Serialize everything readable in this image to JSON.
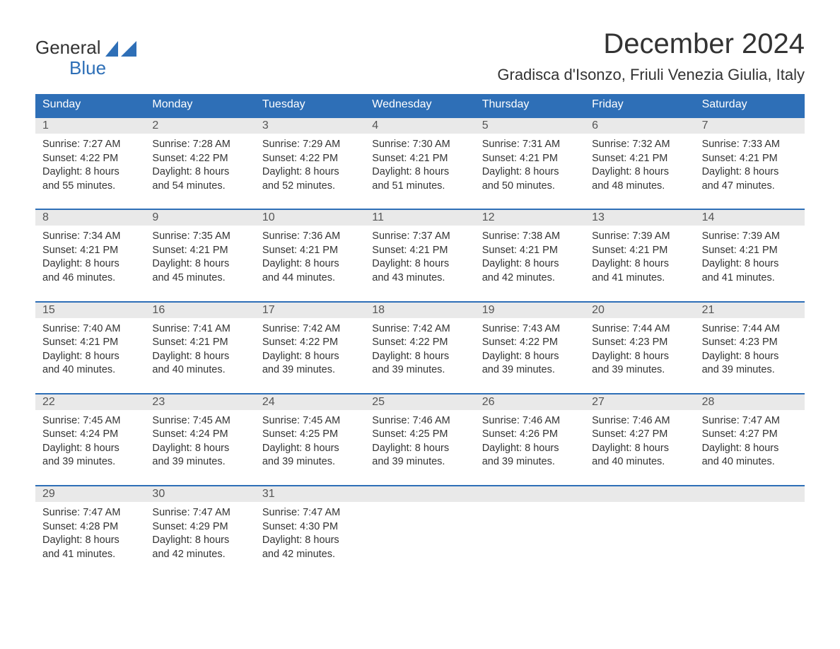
{
  "logo": {
    "text1": "General",
    "text2": "Blue",
    "icon_color": "#2e6fb7",
    "text1_color": "#333333",
    "text2_color": "#2e6fb7"
  },
  "title": "December 2024",
  "location": "Gradisca d'Isonzo, Friuli Venezia Giulia, Italy",
  "colors": {
    "header_bg": "#2e6fb7",
    "header_text": "#ffffff",
    "daynum_bg": "#e9e9e9",
    "daynum_text": "#555555",
    "body_text": "#333333",
    "row_border": "#2e6fb7",
    "background": "#ffffff"
  },
  "day_headers": [
    "Sunday",
    "Monday",
    "Tuesday",
    "Wednesday",
    "Thursday",
    "Friday",
    "Saturday"
  ],
  "weeks": [
    [
      {
        "day": "1",
        "sunrise": "Sunrise: 7:27 AM",
        "sunset": "Sunset: 4:22 PM",
        "dl1": "Daylight: 8 hours",
        "dl2": "and 55 minutes."
      },
      {
        "day": "2",
        "sunrise": "Sunrise: 7:28 AM",
        "sunset": "Sunset: 4:22 PM",
        "dl1": "Daylight: 8 hours",
        "dl2": "and 54 minutes."
      },
      {
        "day": "3",
        "sunrise": "Sunrise: 7:29 AM",
        "sunset": "Sunset: 4:22 PM",
        "dl1": "Daylight: 8 hours",
        "dl2": "and 52 minutes."
      },
      {
        "day": "4",
        "sunrise": "Sunrise: 7:30 AM",
        "sunset": "Sunset: 4:21 PM",
        "dl1": "Daylight: 8 hours",
        "dl2": "and 51 minutes."
      },
      {
        "day": "5",
        "sunrise": "Sunrise: 7:31 AM",
        "sunset": "Sunset: 4:21 PM",
        "dl1": "Daylight: 8 hours",
        "dl2": "and 50 minutes."
      },
      {
        "day": "6",
        "sunrise": "Sunrise: 7:32 AM",
        "sunset": "Sunset: 4:21 PM",
        "dl1": "Daylight: 8 hours",
        "dl2": "and 48 minutes."
      },
      {
        "day": "7",
        "sunrise": "Sunrise: 7:33 AM",
        "sunset": "Sunset: 4:21 PM",
        "dl1": "Daylight: 8 hours",
        "dl2": "and 47 minutes."
      }
    ],
    [
      {
        "day": "8",
        "sunrise": "Sunrise: 7:34 AM",
        "sunset": "Sunset: 4:21 PM",
        "dl1": "Daylight: 8 hours",
        "dl2": "and 46 minutes."
      },
      {
        "day": "9",
        "sunrise": "Sunrise: 7:35 AM",
        "sunset": "Sunset: 4:21 PM",
        "dl1": "Daylight: 8 hours",
        "dl2": "and 45 minutes."
      },
      {
        "day": "10",
        "sunrise": "Sunrise: 7:36 AM",
        "sunset": "Sunset: 4:21 PM",
        "dl1": "Daylight: 8 hours",
        "dl2": "and 44 minutes."
      },
      {
        "day": "11",
        "sunrise": "Sunrise: 7:37 AM",
        "sunset": "Sunset: 4:21 PM",
        "dl1": "Daylight: 8 hours",
        "dl2": "and 43 minutes."
      },
      {
        "day": "12",
        "sunrise": "Sunrise: 7:38 AM",
        "sunset": "Sunset: 4:21 PM",
        "dl1": "Daylight: 8 hours",
        "dl2": "and 42 minutes."
      },
      {
        "day": "13",
        "sunrise": "Sunrise: 7:39 AM",
        "sunset": "Sunset: 4:21 PM",
        "dl1": "Daylight: 8 hours",
        "dl2": "and 41 minutes."
      },
      {
        "day": "14",
        "sunrise": "Sunrise: 7:39 AM",
        "sunset": "Sunset: 4:21 PM",
        "dl1": "Daylight: 8 hours",
        "dl2": "and 41 minutes."
      }
    ],
    [
      {
        "day": "15",
        "sunrise": "Sunrise: 7:40 AM",
        "sunset": "Sunset: 4:21 PM",
        "dl1": "Daylight: 8 hours",
        "dl2": "and 40 minutes."
      },
      {
        "day": "16",
        "sunrise": "Sunrise: 7:41 AM",
        "sunset": "Sunset: 4:21 PM",
        "dl1": "Daylight: 8 hours",
        "dl2": "and 40 minutes."
      },
      {
        "day": "17",
        "sunrise": "Sunrise: 7:42 AM",
        "sunset": "Sunset: 4:22 PM",
        "dl1": "Daylight: 8 hours",
        "dl2": "and 39 minutes."
      },
      {
        "day": "18",
        "sunrise": "Sunrise: 7:42 AM",
        "sunset": "Sunset: 4:22 PM",
        "dl1": "Daylight: 8 hours",
        "dl2": "and 39 minutes."
      },
      {
        "day": "19",
        "sunrise": "Sunrise: 7:43 AM",
        "sunset": "Sunset: 4:22 PM",
        "dl1": "Daylight: 8 hours",
        "dl2": "and 39 minutes."
      },
      {
        "day": "20",
        "sunrise": "Sunrise: 7:44 AM",
        "sunset": "Sunset: 4:23 PM",
        "dl1": "Daylight: 8 hours",
        "dl2": "and 39 minutes."
      },
      {
        "day": "21",
        "sunrise": "Sunrise: 7:44 AM",
        "sunset": "Sunset: 4:23 PM",
        "dl1": "Daylight: 8 hours",
        "dl2": "and 39 minutes."
      }
    ],
    [
      {
        "day": "22",
        "sunrise": "Sunrise: 7:45 AM",
        "sunset": "Sunset: 4:24 PM",
        "dl1": "Daylight: 8 hours",
        "dl2": "and 39 minutes."
      },
      {
        "day": "23",
        "sunrise": "Sunrise: 7:45 AM",
        "sunset": "Sunset: 4:24 PM",
        "dl1": "Daylight: 8 hours",
        "dl2": "and 39 minutes."
      },
      {
        "day": "24",
        "sunrise": "Sunrise: 7:45 AM",
        "sunset": "Sunset: 4:25 PM",
        "dl1": "Daylight: 8 hours",
        "dl2": "and 39 minutes."
      },
      {
        "day": "25",
        "sunrise": "Sunrise: 7:46 AM",
        "sunset": "Sunset: 4:25 PM",
        "dl1": "Daylight: 8 hours",
        "dl2": "and 39 minutes."
      },
      {
        "day": "26",
        "sunrise": "Sunrise: 7:46 AM",
        "sunset": "Sunset: 4:26 PM",
        "dl1": "Daylight: 8 hours",
        "dl2": "and 39 minutes."
      },
      {
        "day": "27",
        "sunrise": "Sunrise: 7:46 AM",
        "sunset": "Sunset: 4:27 PM",
        "dl1": "Daylight: 8 hours",
        "dl2": "and 40 minutes."
      },
      {
        "day": "28",
        "sunrise": "Sunrise: 7:47 AM",
        "sunset": "Sunset: 4:27 PM",
        "dl1": "Daylight: 8 hours",
        "dl2": "and 40 minutes."
      }
    ],
    [
      {
        "day": "29",
        "sunrise": "Sunrise: 7:47 AM",
        "sunset": "Sunset: 4:28 PM",
        "dl1": "Daylight: 8 hours",
        "dl2": "and 41 minutes."
      },
      {
        "day": "30",
        "sunrise": "Sunrise: 7:47 AM",
        "sunset": "Sunset: 4:29 PM",
        "dl1": "Daylight: 8 hours",
        "dl2": "and 42 minutes."
      },
      {
        "day": "31",
        "sunrise": "Sunrise: 7:47 AM",
        "sunset": "Sunset: 4:30 PM",
        "dl1": "Daylight: 8 hours",
        "dl2": "and 42 minutes."
      },
      {
        "empty": true
      },
      {
        "empty": true
      },
      {
        "empty": true
      },
      {
        "empty": true
      }
    ]
  ]
}
